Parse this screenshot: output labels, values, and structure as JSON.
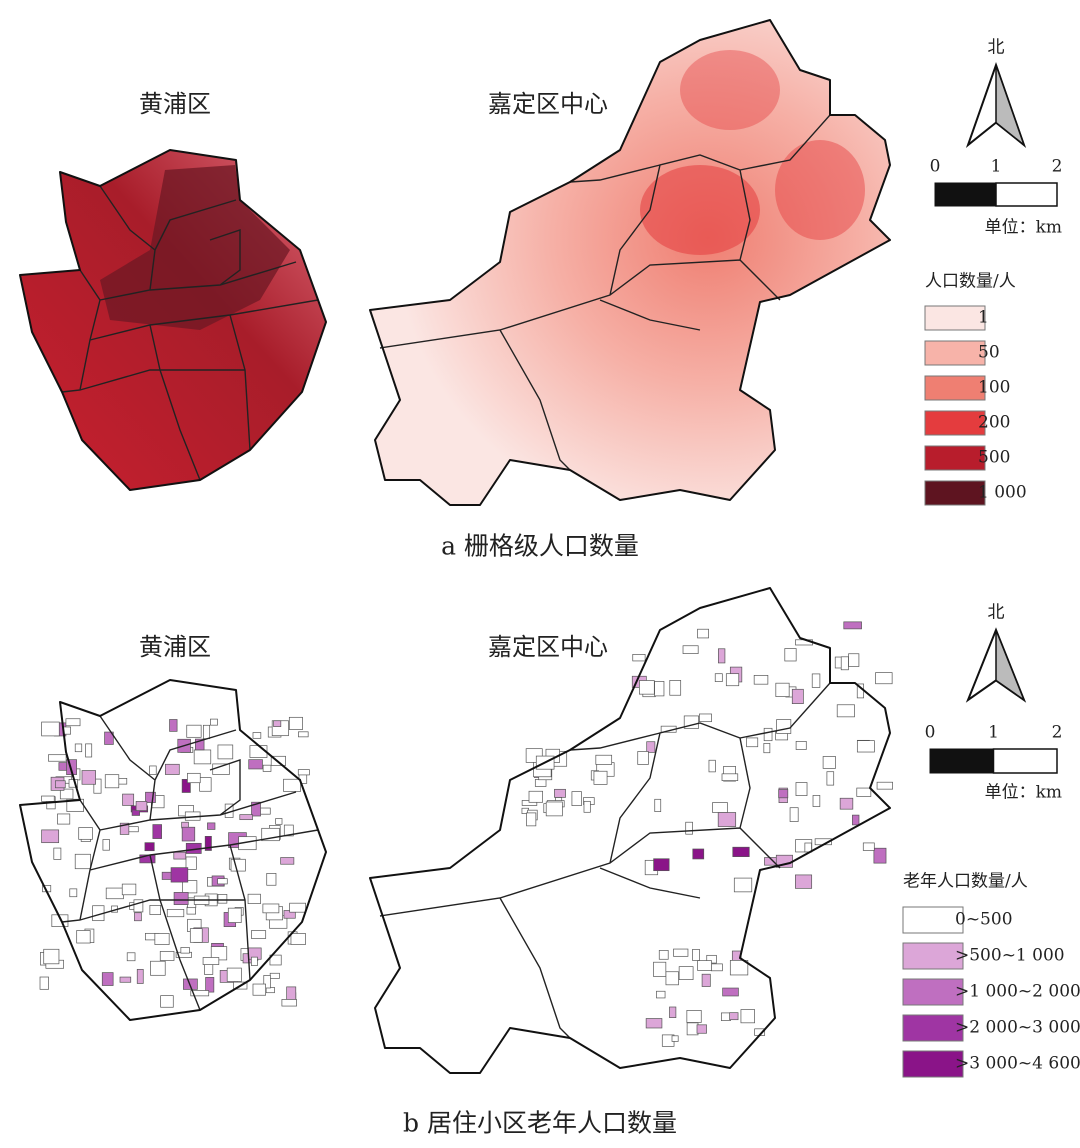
{
  "panels": [
    {
      "caption": "a 栅格级人口数量",
      "maps": [
        {
          "title": "黄浦区"
        },
        {
          "title": "嘉定区中心"
        }
      ],
      "north": "北",
      "scale": {
        "ticks": [
          "0",
          "1",
          "2"
        ],
        "unit": "单位：km"
      },
      "legend": {
        "title": "人口数量/人",
        "items": [
          {
            "label": "1",
            "color": "#fbe6e3"
          },
          {
            "label": "50",
            "color": "#f7b3a9"
          },
          {
            "label": "100",
            "color": "#ef7f72"
          },
          {
            "label": "200",
            "color": "#e43c3e"
          },
          {
            "label": "500",
            "color": "#b81d2c"
          },
          {
            "label": "1 000",
            "color": "#5e1420"
          }
        ]
      }
    },
    {
      "caption": "b 居住小区老年人口数量",
      "maps": [
        {
          "title": "黄浦区"
        },
        {
          "title": "嘉定区中心"
        }
      ],
      "north": "北",
      "scale": {
        "ticks": [
          "0",
          "1",
          "2"
        ],
        "unit": "单位：km"
      },
      "legend": {
        "title": "老年人口数量/人",
        "items": [
          {
            "label": "0~500",
            "color": "#ffffff"
          },
          {
            "label": ">500~1 000",
            "color": "#dca6d8"
          },
          {
            "label": ">1 000~2 000",
            "color": "#bf6fc0"
          },
          {
            "label": ">2 000~3 000",
            "color": "#9f35a3"
          },
          {
            "label": ">3 000~4 600",
            "color": "#8a1488"
          }
        ]
      }
    }
  ]
}
